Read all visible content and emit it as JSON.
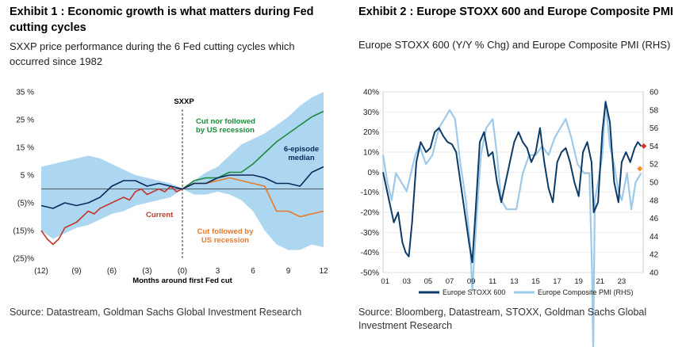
{
  "exhibit1": {
    "title": "Exhibit 1 : Economic growth is what matters during Fed cutting cycles",
    "subtitle": "SXXP price performance during the 6 Fed cutting cycles which occurred since 1982",
    "source": "Source: Datastream, Goldman Sachs Global Investment Research"
  },
  "exhibit2": {
    "title": "Exhibit 2 : Europe STOXX 600 and Europe Composite PMI",
    "subtitle": "Europe STOXX 600 (Y/Y % Chg) and Europe Composite PMI (RHS)",
    "source": "Source: Bloomberg, Datastream, STOXX, Goldman Sachs Global Investment Research"
  },
  "chart_data": [
    {
      "type": "line",
      "title": "SXXP",
      "xlabel": "Months  around first  Fed cut",
      "ylabel": "",
      "x_ticks": [
        -12,
        -9,
        -6,
        -3,
        0,
        3,
        6,
        9,
        12
      ],
      "x_tick_labels": [
        "(12)",
        "(9)",
        "(6)",
        "(3)",
        "(0)",
        "3",
        "6",
        "9",
        "12"
      ],
      "xlim": [
        -12,
        12
      ],
      "y_ticks": [
        -25,
        -15,
        -5,
        5,
        15,
        25,
        35
      ],
      "y_tick_labels": [
        "(25)%",
        "(15)%",
        "(5)%",
        "5 %",
        "15 %",
        "25 %",
        "35 %"
      ],
      "ylim": [
        -25,
        35
      ],
      "grid": false,
      "colors": {
        "median": "#0b2a5a",
        "current": "#c0392b",
        "no_recession": "#1e8a3c",
        "recession": "#e87a2a",
        "band": "#a9d4f0"
      },
      "annotations": {
        "no_recession": "Cut nor followed by US recession",
        "median": "6-episode median",
        "current": "Current",
        "recession": "Cut followed by US recession"
      },
      "band": {
        "x": [
          -12,
          -11,
          -10,
          -9,
          -8,
          -7,
          -6,
          -5,
          -4,
          -3,
          -2,
          -1,
          0,
          1,
          2,
          3,
          4,
          5,
          6,
          7,
          8,
          9,
          10,
          11,
          12
        ],
        "upper": [
          8,
          9,
          10,
          11,
          12,
          11,
          9,
          7,
          5,
          4,
          3,
          2,
          0,
          3,
          6,
          8,
          12,
          16,
          18,
          20,
          23,
          26,
          30,
          33,
          35
        ],
        "lower": [
          -15,
          -18,
          -16,
          -14,
          -13,
          -11,
          -9,
          -8,
          -6,
          -5,
          -4,
          -3,
          0,
          -2,
          -2,
          -1,
          -2,
          -4,
          -8,
          -15,
          -20,
          -22,
          -22,
          -20,
          -21
        ]
      },
      "series": [
        {
          "name": "6-episode median",
          "x": [
            -12,
            -11,
            -10,
            -9,
            -8,
            -7,
            -6,
            -5,
            -4,
            -3,
            -2,
            -1,
            0,
            1,
            2,
            3,
            4,
            5,
            6,
            7,
            8,
            9,
            10,
            11,
            12
          ],
          "values": [
            -6,
            -7,
            -5,
            -6,
            -5,
            -3,
            1,
            3,
            3,
            1,
            2,
            1,
            0,
            2,
            2,
            4,
            5,
            5,
            5,
            4,
            2,
            2,
            1,
            6,
            8
          ]
        },
        {
          "name": "Current",
          "x": [
            -12,
            -11.5,
            -11,
            -10.5,
            -10,
            -9.5,
            -9,
            -8.5,
            -8,
            -7.5,
            -7,
            -6.5,
            -6,
            -5.5,
            -5,
            -4.5,
            -4,
            -3.5,
            -3,
            -2.5,
            -2,
            -1.5,
            -1,
            -0.5,
            0
          ],
          "values": [
            -15,
            -18,
            -20,
            -18,
            -14,
            -13,
            -12,
            -10,
            -8,
            -9,
            -7,
            -6,
            -5,
            -4,
            -3,
            -4,
            -1,
            0,
            -2,
            -1,
            0,
            -1,
            1,
            -1,
            0
          ]
        },
        {
          "name": "Cut nor followed by US recession",
          "x": [
            0,
            1,
            2,
            3,
            4,
            5,
            6,
            7,
            8,
            9,
            10,
            11,
            12
          ],
          "values": [
            0,
            3,
            4,
            4,
            6,
            6,
            9,
            13,
            17,
            20,
            23,
            26,
            28
          ]
        },
        {
          "name": "Cut followed by US recession",
          "x": [
            0,
            1,
            2,
            3,
            4,
            5,
            6,
            7,
            8,
            9,
            10,
            11,
            12
          ],
          "values": [
            0,
            2,
            2,
            3,
            4,
            3,
            2,
            1,
            -8,
            -8,
            -10,
            -9,
            -8
          ]
        }
      ]
    },
    {
      "type": "line",
      "title": "",
      "xlabel": "",
      "ylabel": "",
      "x_ticks": [
        2001,
        2003,
        2005,
        2007,
        2009,
        2011,
        2013,
        2015,
        2017,
        2019,
        2021,
        2023
      ],
      "x_tick_labels": [
        "01",
        "03",
        "05",
        "07",
        "09",
        "11",
        "13",
        "15",
        "17",
        "19",
        "21",
        "23"
      ],
      "xlim": [
        2000.8,
        2025.0
      ],
      "y_left_ticks": [
        -50,
        -40,
        -30,
        -20,
        -10,
        0,
        10,
        20,
        30,
        40
      ],
      "y_left_tick_labels": [
        "-50%",
        "-40%",
        "-30%",
        "-20%",
        "-10%",
        "0%",
        "10%",
        "20%",
        "30%",
        "40%"
      ],
      "ylim_left": [
        -50,
        40
      ],
      "y_right_ticks": [
        40,
        42,
        44,
        46,
        48,
        50,
        52,
        54,
        56,
        58,
        60
      ],
      "y_right_tick_labels": [
        "40",
        "42",
        "44",
        "46",
        "48",
        "50",
        "52",
        "54",
        "56",
        "58",
        "60"
      ],
      "ylim_right": [
        40,
        60
      ],
      "grid": true,
      "legend_position": "bottom",
      "colors": {
        "stoxx": "#0d3a66",
        "pmi": "#9ecae9",
        "stoxx_marker": "#d73027",
        "pmi_marker": "#f28c28"
      },
      "series": [
        {
          "name": "Europe STOXX 600",
          "axis": "left",
          "x": [
            2000.8,
            2001.0,
            2001.4,
            2001.8,
            2002.2,
            2002.6,
            2002.9,
            2003.2,
            2003.5,
            2003.9,
            2004.3,
            2004.8,
            2005.2,
            2005.6,
            2006.0,
            2006.4,
            2006.8,
            2007.2,
            2007.6,
            2008.0,
            2008.4,
            2008.8,
            2009.1,
            2009.4,
            2009.8,
            2010.2,
            2010.6,
            2011.0,
            2011.4,
            2011.8,
            2012.2,
            2012.6,
            2013.0,
            2013.4,
            2013.8,
            2014.2,
            2014.6,
            2015.0,
            2015.4,
            2015.8,
            2016.2,
            2016.6,
            2017.0,
            2017.4,
            2017.8,
            2018.2,
            2018.6,
            2019.0,
            2019.4,
            2019.8,
            2020.2,
            2020.4,
            2020.8,
            2021.2,
            2021.5,
            2021.9,
            2022.3,
            2022.7,
            2023.0,
            2023.4,
            2023.8,
            2024.2,
            2024.5,
            2024.8
          ],
          "values": [
            0,
            -5,
            -15,
            -25,
            -20,
            -35,
            -40,
            -42,
            -25,
            5,
            15,
            10,
            12,
            20,
            22,
            18,
            15,
            14,
            10,
            -5,
            -20,
            -35,
            -45,
            -20,
            15,
            20,
            8,
            10,
            -5,
            -15,
            -5,
            5,
            15,
            20,
            15,
            12,
            5,
            10,
            22,
            5,
            -8,
            -15,
            5,
            10,
            12,
            5,
            -5,
            -12,
            10,
            15,
            5,
            -20,
            -15,
            20,
            35,
            25,
            -5,
            -15,
            5,
            10,
            5,
            12,
            15,
            13
          ]
        },
        {
          "name": "Europe Composite PMI (RHS)",
          "axis": "right",
          "x": [
            2000.8,
            2001.2,
            2001.6,
            2002.0,
            2002.5,
            2003.0,
            2003.4,
            2003.8,
            2004.2,
            2004.8,
            2005.4,
            2006.0,
            2006.5,
            2007.0,
            2007.5,
            2008.0,
            2008.5,
            2008.9,
            2009.1,
            2009.5,
            2009.9,
            2010.4,
            2011.0,
            2011.4,
            2011.8,
            2012.3,
            2012.8,
            2013.2,
            2013.8,
            2014.4,
            2015.0,
            2015.6,
            2016.2,
            2016.8,
            2017.3,
            2017.8,
            2018.3,
            2018.9,
            2019.5,
            2020.0,
            2020.25,
            2020.35,
            2020.5,
            2020.8,
            2021.2,
            2021.5,
            2021.9,
            2022.3,
            2022.7,
            2023.0,
            2023.5,
            2023.9,
            2024.3,
            2024.8
          ],
          "values": [
            53,
            50,
            48,
            51,
            50,
            49,
            51,
            53,
            54,
            52,
            53,
            56,
            57,
            58,
            57,
            52,
            48,
            43,
            38,
            46,
            53,
            56,
            57,
            53,
            48,
            47,
            47,
            47,
            51,
            53,
            53,
            54,
            53,
            55,
            56,
            57,
            55,
            52,
            51,
            51,
            40,
            31,
            48,
            50,
            53,
            59,
            54,
            52,
            49,
            48,
            51,
            47,
            50,
            51
          ]
        }
      ],
      "end_markers": {
        "stoxx": 13,
        "pmi": 51.5
      }
    }
  ]
}
